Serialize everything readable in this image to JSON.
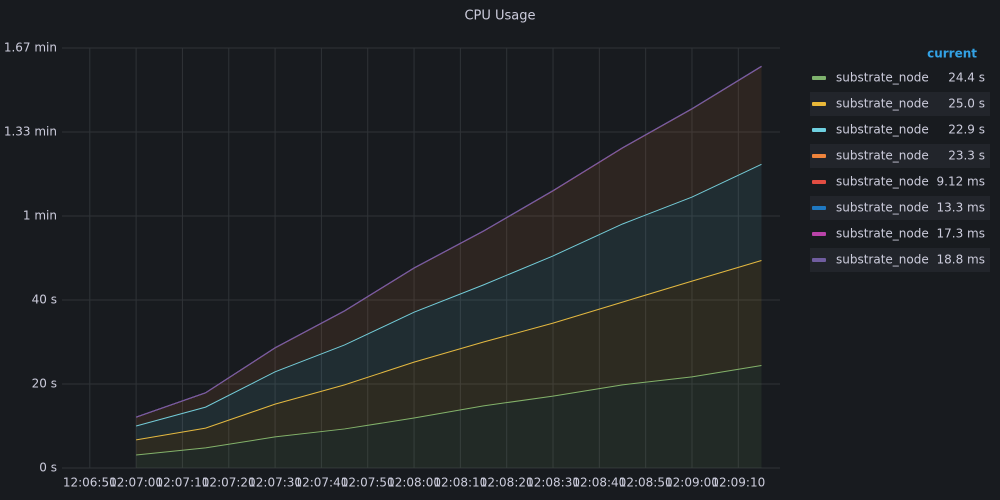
{
  "chart_data": {
    "type": "stacked-area",
    "title": "CPU Usage",
    "legend_title": "current",
    "x": [
      "12:07:00",
      "12:07:15",
      "12:07:30",
      "12:07:45",
      "12:08:00",
      "12:08:15",
      "12:08:30",
      "12:08:45",
      "12:09:00",
      "12:09:15"
    ],
    "xlim": [
      "12:06:44",
      "12:09:19"
    ],
    "xticks": [
      "12:06:50",
      "12:07:00",
      "12:07:10",
      "12:07:20",
      "12:07:30",
      "12:07:40",
      "12:07:50",
      "12:08:00",
      "12:08:10",
      "12:08:20",
      "12:08:30",
      "12:08:40",
      "12:08:50",
      "12:09:00",
      "12:09:10"
    ],
    "ylim": [
      0,
      100
    ],
    "yticks": [
      {
        "value": 0,
        "label": "0 s"
      },
      {
        "value": 20,
        "label": "20 s"
      },
      {
        "value": 40,
        "label": "40 s"
      },
      {
        "value": 60,
        "label": "1 min"
      },
      {
        "value": 80,
        "label": "1.33 min"
      },
      {
        "value": 100,
        "label": "1.67 min"
      }
    ],
    "grid": true,
    "series": [
      {
        "name": "substrate_node",
        "color": "#7eb26d",
        "current": "24.4 s",
        "values": [
          3.1,
          4.8,
          7.4,
          9.3,
          11.9,
          14.8,
          17.1,
          19.8,
          21.7,
          24.4
        ]
      },
      {
        "name": "substrate_node",
        "color": "#eab839",
        "current": "25.0 s",
        "values": [
          3.6,
          4.7,
          7.8,
          10.5,
          13.3,
          15.2,
          17.4,
          19.7,
          22.8,
          25.0
        ]
      },
      {
        "name": "substrate_node",
        "color": "#6ed0e0",
        "current": "22.9 s",
        "values": [
          3.3,
          5.0,
          7.7,
          9.5,
          11.9,
          13.6,
          16.0,
          18.6,
          20.0,
          22.9
        ]
      },
      {
        "name": "substrate_node",
        "color": "#ef843c",
        "current": "23.3 s",
        "values": [
          2.1,
          3.4,
          5.7,
          8.1,
          10.5,
          12.8,
          15.5,
          18.1,
          21.0,
          23.3
        ]
      },
      {
        "name": "substrate_node",
        "color": "#e24d42",
        "current": "9.12 ms",
        "values": [
          0.001,
          0.002,
          0.003,
          0.004,
          0.005,
          0.006,
          0.007,
          0.008,
          0.0085,
          0.00912
        ]
      },
      {
        "name": "substrate_node",
        "color": "#1f78c1",
        "current": "13.3 ms",
        "values": [
          0.002,
          0.003,
          0.004,
          0.005,
          0.007,
          0.008,
          0.01,
          0.011,
          0.012,
          0.0133
        ]
      },
      {
        "name": "substrate_node",
        "color": "#ba43a9",
        "current": "17.3 ms",
        "values": [
          0.002,
          0.004,
          0.005,
          0.007,
          0.009,
          0.011,
          0.013,
          0.015,
          0.016,
          0.0173
        ]
      },
      {
        "name": "substrate_node",
        "color": "#705da0",
        "current": "18.8 ms",
        "values": [
          0.002,
          0.004,
          0.006,
          0.008,
          0.01,
          0.012,
          0.014,
          0.016,
          0.017,
          0.0188
        ]
      }
    ]
  }
}
